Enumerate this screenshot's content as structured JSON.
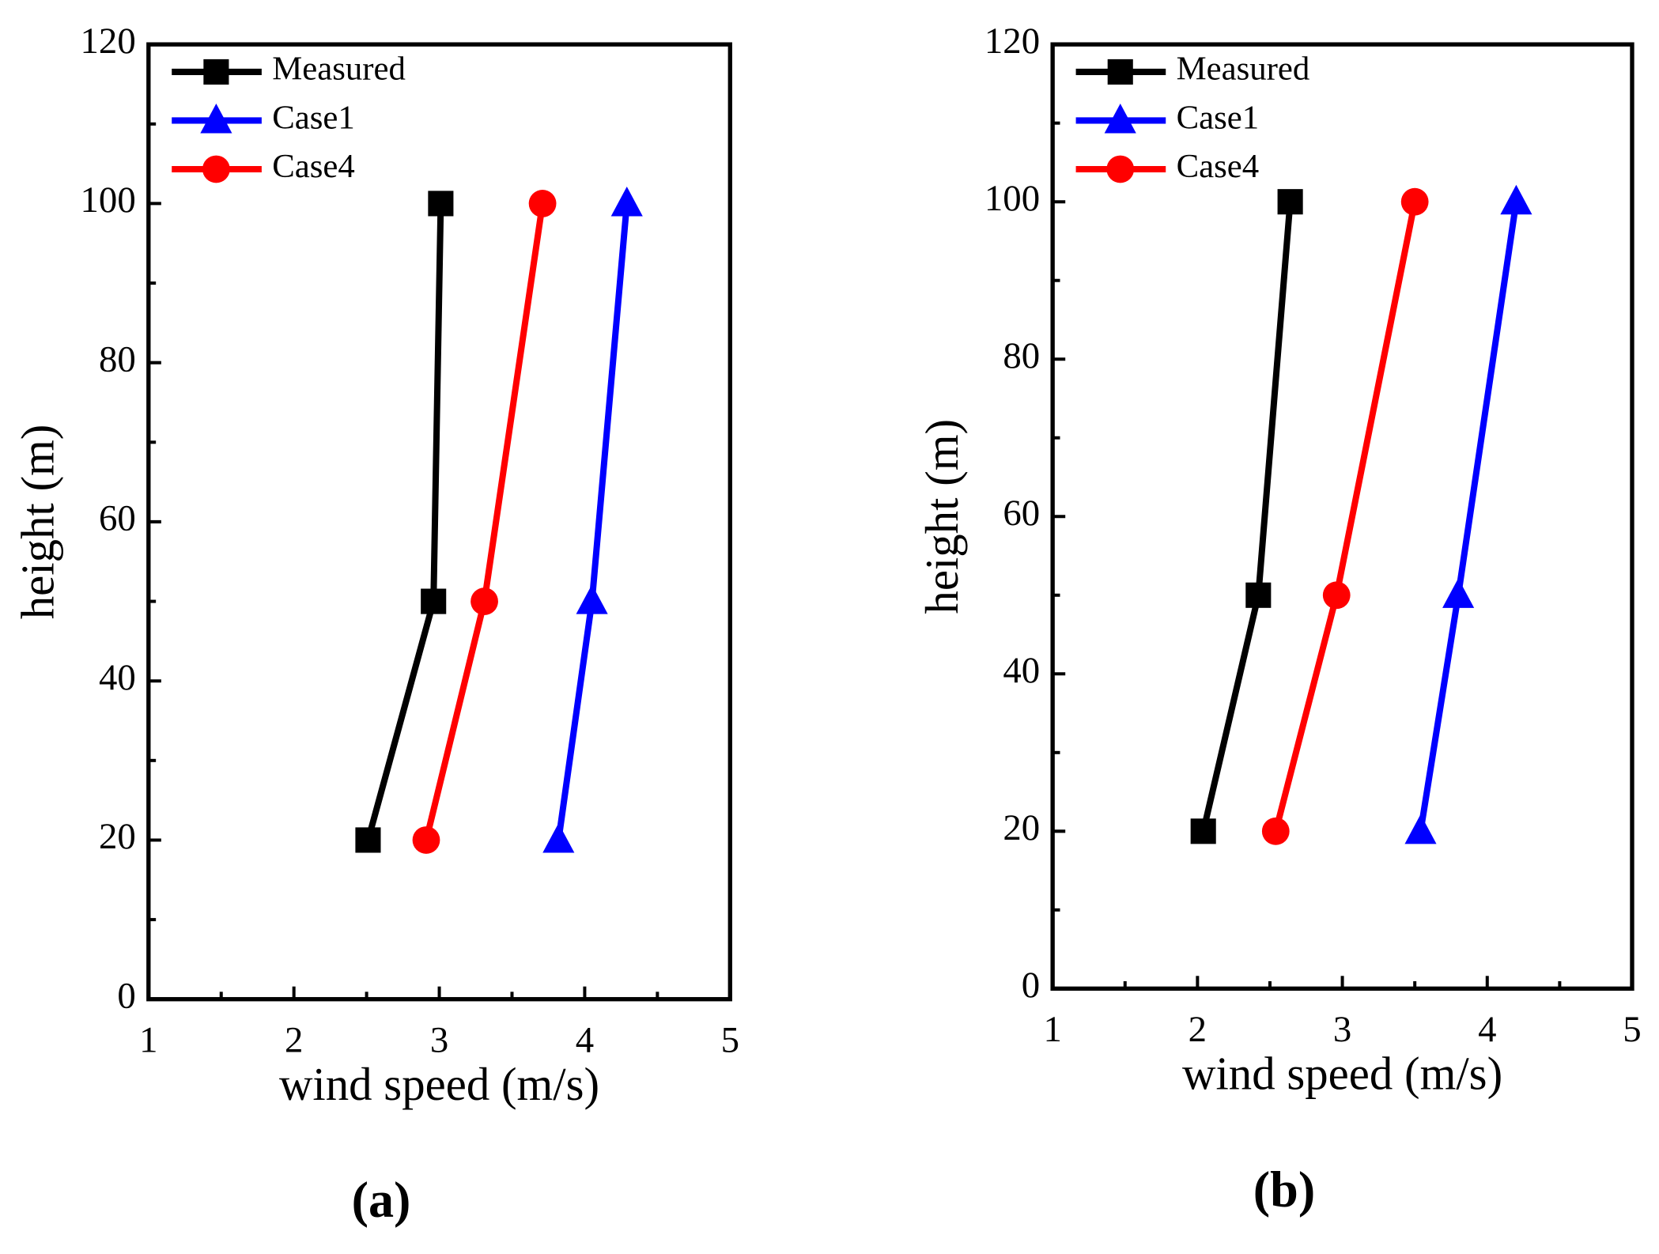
{
  "chart_data": [
    {
      "type": "line",
      "caption": "(a)",
      "x_label": "wind speed (m/s)",
      "y_label": "height (m)",
      "xlim": [
        1,
        5
      ],
      "xticks": [
        1,
        2,
        3,
        4,
        5
      ],
      "ylim": [
        0,
        120
      ],
      "yticks": [
        0,
        20,
        40,
        60,
        80,
        100,
        120
      ],
      "legend": "upper left",
      "series": [
        {
          "name": "Measured",
          "color": "#000000",
          "marker": "square",
          "x": [
            2.51,
            2.96,
            3.01
          ],
          "y": [
            20,
            50,
            100
          ]
        },
        {
          "name": "Case1",
          "color": "#0000ff",
          "marker": "triangle",
          "x": [
            3.82,
            4.05,
            4.29
          ],
          "y": [
            20,
            50,
            100
          ]
        },
        {
          "name": "Case4",
          "color": "#ff0000",
          "marker": "circle",
          "x": [
            2.91,
            3.31,
            3.71
          ],
          "y": [
            20,
            50,
            100
          ]
        }
      ]
    },
    {
      "type": "line",
      "caption": "(b)",
      "x_label": "wind speed (m/s)",
      "y_label": "height (m)",
      "xlim": [
        1,
        5
      ],
      "xticks": [
        1,
        2,
        3,
        4,
        5
      ],
      "ylim": [
        0,
        120
      ],
      "yticks": [
        0,
        20,
        40,
        60,
        80,
        100,
        120
      ],
      "legend": "upper left",
      "series": [
        {
          "name": "Measured",
          "color": "#000000",
          "marker": "square",
          "x": [
            2.04,
            2.42,
            2.64
          ],
          "y": [
            20,
            50,
            100
          ]
        },
        {
          "name": "Case1",
          "color": "#0000ff",
          "marker": "triangle",
          "x": [
            3.54,
            3.8,
            4.2
          ],
          "y": [
            20,
            50,
            100
          ]
        },
        {
          "name": "Case4",
          "color": "#ff0000",
          "marker": "circle",
          "x": [
            2.54,
            2.96,
            3.5
          ],
          "y": [
            20,
            50,
            100
          ]
        }
      ]
    }
  ]
}
